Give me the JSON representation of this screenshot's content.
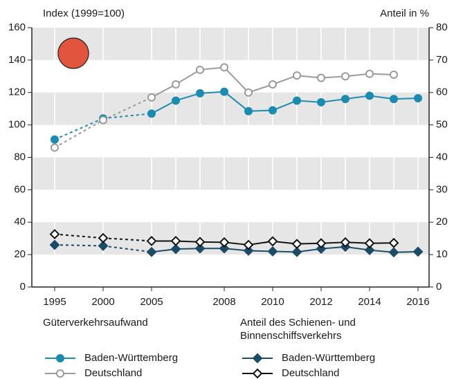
{
  "chart_data": {
    "type": "line",
    "y_label": "Index (1999=100)",
    "y2_label": "Anteil in %",
    "categories": [
      "1995",
      "2000",
      "2005",
      null,
      null,
      "2008",
      null,
      "2010",
      null,
      "2012",
      null,
      "2014",
      null,
      "2016"
    ],
    "ylim": [
      0,
      160
    ],
    "yticks": [
      0,
      20,
      40,
      60,
      80,
      100,
      120,
      140,
      160
    ],
    "y2lim": [
      0,
      80
    ],
    "y2ticks": [
      0,
      10,
      20,
      30,
      40,
      50,
      60,
      70,
      80
    ],
    "grid": true,
    "legend_titles": [
      "Güterverkehrsaufwand",
      "Anteil des Schienen- und Binnenschiffsverkehrs"
    ],
    "series": [
      {
        "name": "Baden-Württemberg",
        "color": "#1b8bb0",
        "marker": "circle",
        "values": [
          91,
          104,
          107,
          115,
          119.5,
          120.5,
          108.5,
          109,
          115,
          114,
          116,
          118,
          116,
          116.5
        ]
      },
      {
        "name": "Deutschland",
        "color": "#9a9a9a",
        "marker": "circle-open",
        "values": [
          86,
          103,
          117,
          125,
          134,
          135.5,
          120,
          125,
          130.5,
          129,
          130,
          131.5,
          131,
          null
        ]
      },
      {
        "name": "Baden-Württemberg",
        "color": "#1c4b66",
        "marker": "diamond",
        "axis": "y2",
        "values": [
          13,
          12.7,
          10.8,
          11.7,
          11.9,
          11.9,
          11.2,
          11,
          10.8,
          11.8,
          12.4,
          11.4,
          10.7,
          10.9
        ]
      },
      {
        "name": "Deutschland",
        "color": "#111111",
        "marker": "diamond-open",
        "axis": "y2",
        "values": [
          16.3,
          15.1,
          14.2,
          14.2,
          13.9,
          13.8,
          13,
          14.1,
          13.3,
          13.5,
          13.8,
          13.5,
          13.6,
          null
        ]
      }
    ]
  }
}
